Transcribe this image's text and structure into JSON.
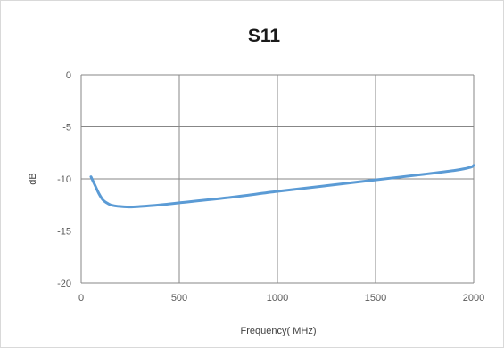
{
  "chart_data": {
    "type": "line",
    "title": "S11",
    "xlabel": "Frequency( MHz)",
    "ylabel": "dB",
    "xlim": [
      0,
      2000
    ],
    "ylim": [
      -20,
      0
    ],
    "xticks": [
      0,
      500,
      1000,
      1500,
      2000
    ],
    "yticks": [
      0,
      -5,
      -10,
      -15,
      -20
    ],
    "xtick_labels": [
      "0",
      "500",
      "1000",
      "1500",
      "2000"
    ],
    "ytick_labels": [
      "0",
      "-5",
      "-10",
      "-15",
      "-20"
    ],
    "grid": true,
    "legend": "none",
    "series": [
      {
        "color": "#5b9bd5",
        "x": [
          50,
          70,
          90,
          110,
          130,
          150,
          175,
          200,
          250,
          300,
          400,
          500,
          750,
          1000,
          1250,
          1500,
          1750,
          1900,
          1960,
          1990,
          2000
        ],
        "y": [
          -9.8,
          -10.6,
          -11.4,
          -12.0,
          -12.3,
          -12.5,
          -12.6,
          -12.65,
          -12.7,
          -12.65,
          -12.5,
          -12.3,
          -11.8,
          -11.2,
          -10.65,
          -10.1,
          -9.55,
          -9.2,
          -9.0,
          -8.85,
          -8.7
        ]
      }
    ]
  }
}
